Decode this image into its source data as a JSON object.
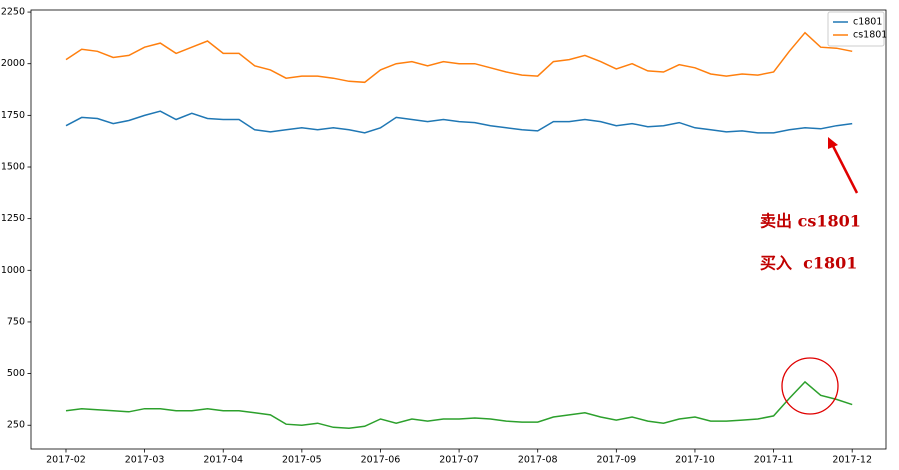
{
  "chart_data": {
    "type": "line",
    "x": [
      2.0,
      2.2,
      2.4,
      2.6,
      2.8,
      3.0,
      3.2,
      3.4,
      3.6,
      3.8,
      4.0,
      4.2,
      4.4,
      4.6,
      4.8,
      5.0,
      5.2,
      5.4,
      5.6,
      5.8,
      6.0,
      6.2,
      6.4,
      6.6,
      6.8,
      7.0,
      7.2,
      7.4,
      7.6,
      7.8,
      8.0,
      8.2,
      8.4,
      8.6,
      8.8,
      9.0,
      9.2,
      9.4,
      9.6,
      9.8,
      10.0,
      10.2,
      10.4,
      10.6,
      10.8,
      11.0,
      11.2,
      11.4,
      11.6,
      11.8,
      12.0
    ],
    "series": [
      {
        "name": "c1801",
        "color": "#1f77b4",
        "values": [
          1700,
          1740,
          1735,
          1710,
          1725,
          1750,
          1770,
          1730,
          1760,
          1735,
          1730,
          1730,
          1680,
          1670,
          1680,
          1690,
          1680,
          1690,
          1680,
          1665,
          1690,
          1740,
          1730,
          1720,
          1730,
          1720,
          1715,
          1700,
          1690,
          1680,
          1675,
          1720,
          1720,
          1730,
          1720,
          1700,
          1710,
          1695,
          1700,
          1715,
          1690,
          1680,
          1670,
          1675,
          1665,
          1665,
          1680,
          1690,
          1685,
          1700,
          1710
        ]
      },
      {
        "name": "cs1801",
        "color": "#ff7f0e",
        "values": [
          2020,
          2070,
          2060,
          2030,
          2040,
          2080,
          2100,
          2050,
          2080,
          2110,
          2050,
          2050,
          1990,
          1970,
          1930,
          1940,
          1940,
          1930,
          1915,
          1910,
          1970,
          2000,
          2010,
          1990,
          2010,
          2000,
          2000,
          1980,
          1960,
          1945,
          1940,
          2010,
          2020,
          2040,
          2010,
          1975,
          2000,
          1965,
          1960,
          1995,
          1980,
          1950,
          1940,
          1950,
          1945,
          1960,
          2060,
          2150,
          2080,
          2075,
          2060
        ]
      },
      {
        "color": "#2ca02c",
        "values": [
          320,
          330,
          325,
          320,
          315,
          330,
          330,
          320,
          320,
          330,
          320,
          320,
          310,
          300,
          255,
          250,
          260,
          240,
          235,
          245,
          280,
          260,
          280,
          270,
          280,
          280,
          285,
          280,
          270,
          265,
          265,
          290,
          300,
          310,
          290,
          275,
          290,
          270,
          260,
          280,
          290,
          270,
          270,
          275,
          280,
          295,
          380,
          460,
          395,
          375,
          350
        ]
      }
    ],
    "xlim": [
      1.555,
      12.43
    ],
    "xticks": [
      {
        "value": 2,
        "label": "2017-02"
      },
      {
        "value": 3,
        "label": "2017-03"
      },
      {
        "value": 4,
        "label": "2017-04"
      },
      {
        "value": 5,
        "label": "2017-05"
      },
      {
        "value": 6,
        "label": "2017-06"
      },
      {
        "value": 7,
        "label": "2017-07"
      },
      {
        "value": 8,
        "label": "2017-08"
      },
      {
        "value": 9,
        "label": "2017-09"
      },
      {
        "value": 10,
        "label": "2017-10"
      },
      {
        "value": 11,
        "label": "2017-11"
      },
      {
        "value": 12,
        "label": "2017-12"
      }
    ],
    "ylim": [
      135,
      2260
    ],
    "yticks": [
      250,
      500,
      750,
      1000,
      1250,
      1500,
      1750,
      2000,
      2250
    ],
    "legend": "upper right",
    "annotations": [
      "卖出 cs1801",
      "买入  c1801"
    ]
  }
}
